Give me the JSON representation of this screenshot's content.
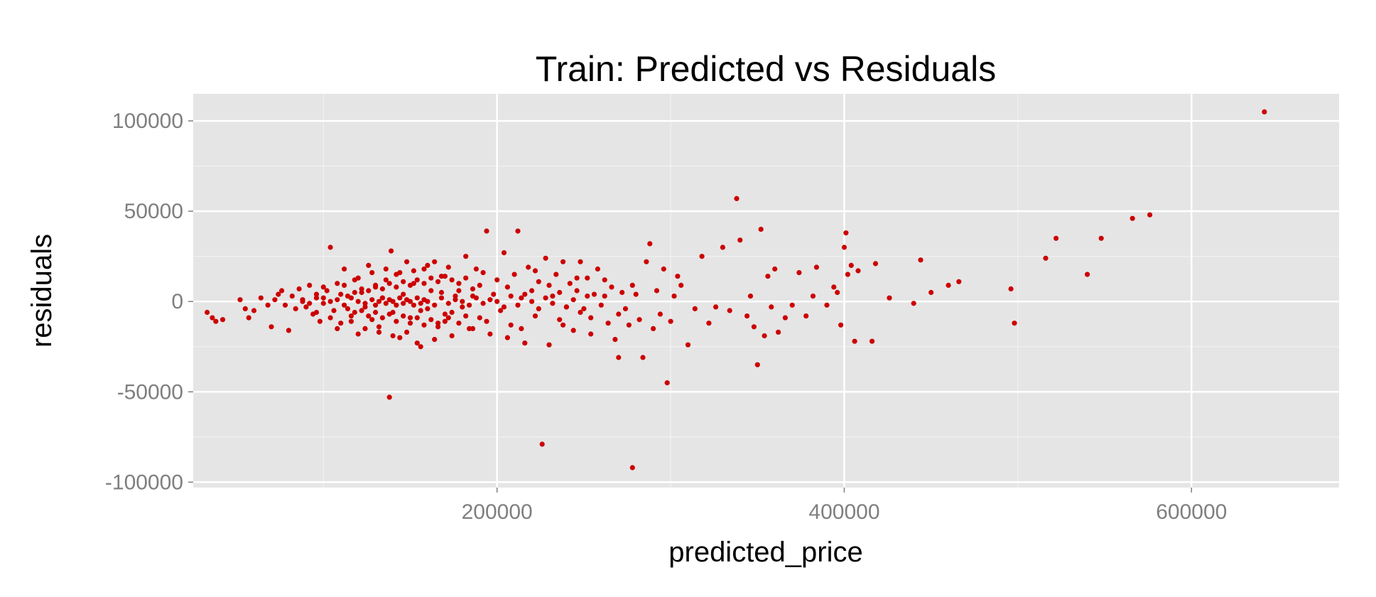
{
  "chart_data": {
    "type": "scatter",
    "title": "Train: Predicted vs Residuals",
    "xlabel": "predicted_price",
    "ylabel": "residuals",
    "xlim": [
      25000,
      685000
    ],
    "ylim": [
      -103000,
      115000
    ],
    "x_ticks": [
      200000,
      400000,
      600000
    ],
    "x_tick_labels": [
      "200000",
      "400000",
      "600000"
    ],
    "y_ticks": [
      -100000,
      -50000,
      0,
      50000,
      100000
    ],
    "y_tick_labels": [
      "-100000",
      "-50000",
      "0",
      "50000",
      "100000"
    ],
    "grid": true,
    "legend": "none",
    "colors": {
      "point": "#cc0000",
      "panel": "#e5e5e5",
      "grid_major": "#ffffff",
      "grid_minor": "#f2f2f2",
      "tick_text": "#7f7f7f"
    },
    "points": [
      [
        33000,
        -6000
      ],
      [
        36000,
        -9000
      ],
      [
        38000,
        -11000
      ],
      [
        42000,
        -10000
      ],
      [
        52000,
        1000
      ],
      [
        55000,
        -4000
      ],
      [
        57000,
        -9000
      ],
      [
        60000,
        -5000
      ],
      [
        64000,
        2000
      ],
      [
        68000,
        -2000
      ],
      [
        70000,
        -14000
      ],
      [
        72000,
        1000
      ],
      [
        74000,
        4000
      ],
      [
        76000,
        6000
      ],
      [
        78000,
        -2000
      ],
      [
        80000,
        -16000
      ],
      [
        82000,
        3000
      ],
      [
        84000,
        -4000
      ],
      [
        86000,
        7000
      ],
      [
        88000,
        1000
      ],
      [
        90000,
        -3000
      ],
      [
        92000,
        9000
      ],
      [
        94000,
        -7000
      ],
      [
        96000,
        4000
      ],
      [
        98000,
        -11000
      ],
      [
        100000,
        2000
      ],
      [
        102000,
        6000
      ],
      [
        104000,
        30000
      ],
      [
        106000,
        -5000
      ],
      [
        108000,
        10000
      ],
      [
        110000,
        -12000
      ],
      [
        112000,
        18000
      ],
      [
        114000,
        3000
      ],
      [
        116000,
        -8000
      ],
      [
        118000,
        12000
      ],
      [
        120000,
        -18000
      ],
      [
        122000,
        5000
      ],
      [
        124000,
        -3000
      ],
      [
        126000,
        20000
      ],
      [
        128000,
        -10000
      ],
      [
        130000,
        8000
      ],
      [
        132000,
        -14000
      ],
      [
        134000,
        2000
      ],
      [
        136000,
        12000
      ],
      [
        138000,
        -53000
      ],
      [
        139000,
        28000
      ],
      [
        140000,
        -6000
      ],
      [
        142000,
        15000
      ],
      [
        144000,
        -20000
      ],
      [
        146000,
        4000
      ],
      [
        148000,
        22000
      ],
      [
        150000,
        -9000
      ],
      [
        152000,
        10000
      ],
      [
        154000,
        -23000
      ],
      [
        156000,
        -25000
      ],
      [
        158000,
        18000
      ],
      [
        160000,
        -4000
      ],
      [
        162000,
        6000
      ],
      [
        164000,
        22000
      ],
      [
        166000,
        -12000
      ],
      [
        168000,
        14000
      ],
      [
        170000,
        -7000
      ],
      [
        172000,
        19000
      ],
      [
        174000,
        -19000
      ],
      [
        176000,
        3000
      ],
      [
        178000,
        10000
      ],
      [
        180000,
        -3000
      ],
      [
        182000,
        25000
      ],
      [
        184000,
        -15000
      ],
      [
        186000,
        7000
      ],
      [
        188000,
        18000
      ],
      [
        190000,
        -9000
      ],
      [
        192000,
        16000
      ],
      [
        194000,
        39000
      ],
      [
        196000,
        -18000
      ],
      [
        198000,
        4000
      ],
      [
        200000,
        12000
      ],
      [
        202000,
        -5000
      ],
      [
        204000,
        27000
      ],
      [
        206000,
        8000
      ],
      [
        208000,
        -13000
      ],
      [
        210000,
        15000
      ],
      [
        212000,
        39000
      ],
      [
        214000,
        2000
      ],
      [
        216000,
        -23000
      ],
      [
        218000,
        19000
      ],
      [
        220000,
        6000
      ],
      [
        222000,
        -8000
      ],
      [
        224000,
        11000
      ],
      [
        226000,
        -79000
      ],
      [
        228000,
        24000
      ],
      [
        230000,
        -24000
      ],
      [
        232000,
        3000
      ],
      [
        234000,
        15000
      ],
      [
        236000,
        -10000
      ],
      [
        238000,
        22000
      ],
      [
        240000,
        -3000
      ],
      [
        242000,
        10000
      ],
      [
        244000,
        -16000
      ],
      [
        246000,
        6000
      ],
      [
        248000,
        22000
      ],
      [
        250000,
        -4000
      ],
      [
        252000,
        13000
      ],
      [
        254000,
        -9000
      ],
      [
        256000,
        4000
      ],
      [
        258000,
        18000
      ],
      [
        260000,
        -2000
      ],
      [
        262000,
        12000
      ],
      [
        264000,
        -12000
      ],
      [
        266000,
        8000
      ],
      [
        268000,
        -21000
      ],
      [
        270000,
        -31000
      ],
      [
        272000,
        5000
      ],
      [
        274000,
        -4000
      ],
      [
        276000,
        -13000
      ],
      [
        278000,
        -92000
      ],
      [
        280000,
        4000
      ],
      [
        282000,
        -10000
      ],
      [
        284000,
        -31000
      ],
      [
        286000,
        22000
      ],
      [
        288000,
        32000
      ],
      [
        290000,
        -15000
      ],
      [
        292000,
        6000
      ],
      [
        294000,
        -7000
      ],
      [
        296000,
        18000
      ],
      [
        298000,
        -45000
      ],
      [
        300000,
        -11000
      ],
      [
        302000,
        3000
      ],
      [
        304000,
        14000
      ],
      [
        306000,
        9000
      ],
      [
        310000,
        -24000
      ],
      [
        314000,
        -4000
      ],
      [
        318000,
        25000
      ],
      [
        322000,
        -12000
      ],
      [
        326000,
        -3000
      ],
      [
        330000,
        30000
      ],
      [
        334000,
        -5000
      ],
      [
        338000,
        57000
      ],
      [
        340000,
        34000
      ],
      [
        344000,
        -8000
      ],
      [
        346000,
        3000
      ],
      [
        348000,
        -14000
      ],
      [
        350000,
        -35000
      ],
      [
        352000,
        40000
      ],
      [
        354000,
        -19000
      ],
      [
        356000,
        14000
      ],
      [
        358000,
        -3000
      ],
      [
        360000,
        18000
      ],
      [
        362000,
        -17000
      ],
      [
        366000,
        -9000
      ],
      [
        370000,
        -2000
      ],
      [
        374000,
        16000
      ],
      [
        378000,
        -8000
      ],
      [
        382000,
        3000
      ],
      [
        384000,
        19000
      ],
      [
        390000,
        -2000
      ],
      [
        394000,
        8000
      ],
      [
        396000,
        5000
      ],
      [
        398000,
        -13000
      ],
      [
        400000,
        30000
      ],
      [
        401000,
        38000
      ],
      [
        402000,
        15000
      ],
      [
        404000,
        20000
      ],
      [
        406000,
        -22000
      ],
      [
        408000,
        17000
      ],
      [
        416000,
        -22000
      ],
      [
        418000,
        21000
      ],
      [
        426000,
        2000
      ],
      [
        440000,
        -1000
      ],
      [
        444000,
        23000
      ],
      [
        450000,
        5000
      ],
      [
        460000,
        9000
      ],
      [
        466000,
        11000
      ],
      [
        496000,
        7000
      ],
      [
        498000,
        -12000
      ],
      [
        516000,
        24000
      ],
      [
        522000,
        35000
      ],
      [
        540000,
        15000
      ],
      [
        548000,
        35000
      ],
      [
        566000,
        46000
      ],
      [
        576000,
        48000
      ],
      [
        642000,
        105000
      ],
      [
        88000,
        0
      ],
      [
        92000,
        -1000
      ],
      [
        96000,
        2000
      ],
      [
        100000,
        -1000
      ],
      [
        104000,
        0
      ],
      [
        108000,
        1000
      ],
      [
        112000,
        -2000
      ],
      [
        116000,
        2000
      ],
      [
        120000,
        0
      ],
      [
        124000,
        -1000
      ],
      [
        128000,
        1000
      ],
      [
        130000,
        -2000
      ],
      [
        132000,
        0
      ],
      [
        134000,
        2000
      ],
      [
        136000,
        -1000
      ],
      [
        138000,
        1000
      ],
      [
        140000,
        0
      ],
      [
        142000,
        -2000
      ],
      [
        144000,
        2000
      ],
      [
        146000,
        -1000
      ],
      [
        148000,
        1000
      ],
      [
        150000,
        0
      ],
      [
        152000,
        -2000
      ],
      [
        154000,
        2000
      ],
      [
        156000,
        -1000
      ],
      [
        158000,
        1000
      ],
      [
        160000,
        0
      ],
      [
        164000,
        -2000
      ],
      [
        168000,
        2000
      ],
      [
        172000,
        -1000
      ],
      [
        176000,
        1000
      ],
      [
        180000,
        0
      ],
      [
        184000,
        -2000
      ],
      [
        188000,
        2000
      ],
      [
        192000,
        -1000
      ],
      [
        196000,
        1000
      ],
      [
        200000,
        0
      ],
      [
        204000,
        -3000
      ],
      [
        208000,
        3000
      ],
      [
        212000,
        -2000
      ],
      [
        216000,
        4000
      ],
      [
        220000,
        0
      ],
      [
        224000,
        -4000
      ],
      [
        228000,
        2000
      ],
      [
        232000,
        -1000
      ],
      [
        236000,
        5000
      ],
      [
        240000,
        -3000
      ],
      [
        244000,
        1000
      ],
      [
        248000,
        -6000
      ],
      [
        252000,
        3000
      ],
      [
        118000,
        -6000
      ],
      [
        122000,
        7000
      ],
      [
        126000,
        -8000
      ],
      [
        130000,
        9000
      ],
      [
        134000,
        -9000
      ],
      [
        138000,
        10000
      ],
      [
        142000,
        -11000
      ],
      [
        146000,
        11000
      ],
      [
        150000,
        -12000
      ],
      [
        154000,
        12000
      ],
      [
        158000,
        -13000
      ],
      [
        162000,
        13000
      ],
      [
        166000,
        -14000
      ],
      [
        170000,
        14000
      ],
      [
        174000,
        -6000
      ],
      [
        178000,
        6000
      ],
      [
        182000,
        -8000
      ],
      [
        186000,
        -15000
      ],
      [
        190000,
        9000
      ],
      [
        194000,
        -11000
      ],
      [
        110000,
        4000
      ],
      [
        114000,
        -4000
      ],
      [
        118000,
        5000
      ],
      [
        122000,
        -5000
      ],
      [
        126000,
        6000
      ],
      [
        130000,
        -6000
      ],
      [
        134000,
        7000
      ],
      [
        138000,
        -7000
      ],
      [
        142000,
        8000
      ],
      [
        146000,
        -8000
      ],
      [
        150000,
        9000
      ],
      [
        154000,
        -9000
      ],
      [
        158000,
        10000
      ],
      [
        162000,
        -10000
      ],
      [
        166000,
        11000
      ],
      [
        170000,
        -11000
      ],
      [
        174000,
        12000
      ],
      [
        178000,
        -12000
      ],
      [
        182000,
        13000
      ],
      [
        186000,
        3000
      ],
      [
        96000,
        -6000
      ],
      [
        100000,
        8000
      ],
      [
        104000,
        -9000
      ],
      [
        108000,
        -15000
      ],
      [
        112000,
        9000
      ],
      [
        116000,
        -11000
      ],
      [
        120000,
        13000
      ],
      [
        124000,
        -15000
      ],
      [
        128000,
        16000
      ],
      [
        132000,
        -17000
      ],
      [
        136000,
        18000
      ],
      [
        140000,
        -19000
      ],
      [
        144000,
        16000
      ],
      [
        148000,
        -17000
      ],
      [
        152000,
        17000
      ],
      [
        156000,
        -5000
      ],
      [
        160000,
        20000
      ],
      [
        164000,
        -21000
      ],
      [
        168000,
        5000
      ],
      [
        172000,
        -9000
      ],
      [
        206000,
        -20000
      ],
      [
        214000,
        -15000
      ],
      [
        222000,
        17000
      ],
      [
        230000,
        9000
      ],
      [
        238000,
        -13000
      ],
      [
        246000,
        13000
      ],
      [
        254000,
        -18000
      ],
      [
        262000,
        3000
      ],
      [
        270000,
        -7000
      ],
      [
        278000,
        9000
      ]
    ]
  }
}
